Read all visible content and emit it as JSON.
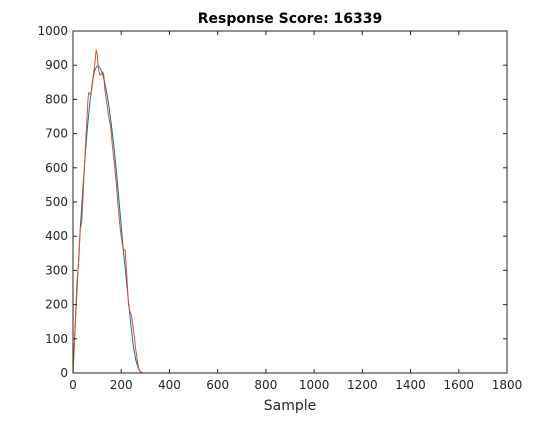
{
  "chart_data": {
    "type": "line",
    "title": "Response Score: 16339",
    "xlabel": "Sample",
    "ylabel": "",
    "xlim": [
      0,
      1800
    ],
    "ylim": [
      0,
      1000
    ],
    "xticks": [
      0,
      200,
      400,
      600,
      800,
      1000,
      1200,
      1400,
      1600,
      1800
    ],
    "yticks": [
      0,
      100,
      200,
      300,
      400,
      500,
      600,
      700,
      800,
      900,
      1000
    ],
    "grid": false,
    "legend": "none",
    "series": [
      {
        "color": "#0072BD",
        "x": [
          0,
          10,
          20,
          30,
          40,
          50,
          60,
          70,
          80,
          90,
          100,
          110,
          120,
          130,
          140,
          150,
          160,
          170,
          180,
          190,
          200,
          210,
          220,
          230,
          240,
          250,
          260,
          270,
          280,
          290,
          300,
          400,
          600,
          800,
          1000,
          1200,
          1400,
          1600
        ],
        "y": [
          0,
          150,
          290,
          420,
          530,
          630,
          720,
          790,
          850,
          885,
          898,
          895,
          880,
          855,
          820,
          775,
          720,
          660,
          590,
          510,
          430,
          350,
          280,
          210,
          140,
          80,
          40,
          15,
          3,
          0,
          0,
          0,
          0,
          0,
          0,
          0,
          0,
          0
        ]
      },
      {
        "color": "#D95319",
        "x": [
          0,
          8,
          16,
          24,
          30,
          36,
          42,
          50,
          56,
          62,
          66,
          72,
          78,
          84,
          90,
          96,
          100,
          104,
          108,
          112,
          118,
          124,
          128,
          132,
          136,
          140,
          148,
          156,
          164,
          172,
          180,
          188,
          196,
          204,
          210,
          216,
          222,
          226,
          230,
          236,
          242,
          248,
          254,
          260,
          266,
          272,
          278,
          284,
          290,
          300,
          400,
          600,
          800,
          1000,
          1200,
          1400,
          1600
        ],
        "y": [
          0,
          120,
          260,
          330,
          420,
          440,
          520,
          640,
          720,
          800,
          820,
          815,
          830,
          870,
          900,
          945,
          935,
          900,
          880,
          870,
          875,
          880,
          870,
          830,
          810,
          790,
          750,
          720,
          660,
          610,
          550,
          480,
          420,
          380,
          360,
          360,
          300,
          250,
          200,
          180,
          170,
          140,
          110,
          70,
          40,
          15,
          5,
          2,
          0,
          0,
          0,
          0,
          0,
          0,
          0,
          0,
          0
        ]
      }
    ]
  }
}
